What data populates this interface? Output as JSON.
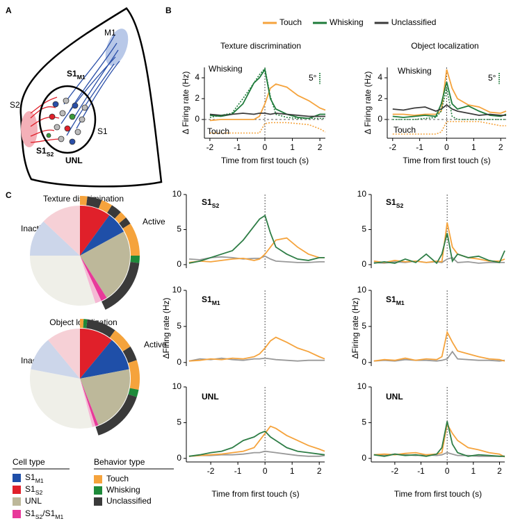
{
  "panel_labels": [
    "A",
    "B",
    "C"
  ],
  "diagram": {
    "labels": [
      {
        "parts": [
          {
            "text": "M1"
          }
        ],
        "color": "#000000"
      },
      {
        "parts": [
          {
            "text": "S1"
          },
          {
            "text": "M1",
            "sub": true
          }
        ],
        "color": "#1f4fa8"
      },
      {
        "parts": [
          {
            "text": "S2"
          }
        ],
        "color": "#000000"
      },
      {
        "parts": [
          {
            "text": "S1"
          }
        ],
        "color": "#000000"
      },
      {
        "parts": [
          {
            "text": "S1"
          },
          {
            "text": "S2",
            "sub": true
          }
        ],
        "color": "#e0202a"
      },
      {
        "parts": [
          {
            "text": "UNL"
          }
        ],
        "color": "#999999"
      }
    ]
  },
  "cell_type_legend": {
    "title": "Cell type",
    "items": [
      {
        "parts": [
          {
            "text": "S1"
          },
          {
            "text": "M1",
            "sub": true
          }
        ],
        "color": "#1f4fa8",
        "light_color": "#ccd6ea"
      },
      {
        "parts": [
          {
            "text": "S1"
          },
          {
            "text": "S2",
            "sub": true
          }
        ],
        "color": "#e0202a",
        "light_color": "#f6d0d6"
      },
      {
        "parts": [
          {
            "text": "UNL"
          }
        ],
        "color": "#bdb89a",
        "light_color": "#efefe8"
      },
      {
        "parts": [
          {
            "text": "S1"
          },
          {
            "text": "S2",
            "sub": true
          },
          {
            "text": "/S1"
          },
          {
            "text": "M1",
            "sub": true
          }
        ],
        "color": "#e8399a",
        "light_color": "#f5b8d4"
      }
    ]
  },
  "behavior_legend": {
    "title": "Behavior type",
    "items": [
      {
        "text": "Touch",
        "color": "#f5a33c"
      },
      {
        "text": "Whisking",
        "color": "#1e8a3a"
      },
      {
        "text": "Unclassified",
        "color": "#3a3a3a"
      }
    ]
  },
  "chart_data": [
    {
      "type": "line",
      "title": "Texture discrimination",
      "xlabel": "Time from first touch (s)",
      "ylabel": "Δ Firing rate (Hz)",
      "x": [
        -2,
        -1.6,
        -1.2,
        -0.8,
        -0.4,
        -0.2,
        0,
        0.2,
        0.4,
        0.8,
        1.2,
        1.6,
        2,
        2.2
      ],
      "xlim": [
        -2.2,
        2.2
      ],
      "xticks": [
        -2,
        -1,
        0,
        1,
        2
      ],
      "ylim": [
        -1.8,
        5
      ],
      "yticks": [
        0,
        2,
        4
      ],
      "zero_lines": "xy",
      "series": [
        {
          "name": "Touch",
          "color": "#f5a33c",
          "values": [
            -0.1,
            0,
            0,
            0,
            0,
            0.3,
            1.5,
            3.0,
            3.4,
            3.1,
            2.3,
            1.8,
            1.1,
            0.9
          ]
        },
        {
          "name": "Whisking",
          "color": "#1e7b3a",
          "values": [
            0.4,
            0.3,
            0.5,
            1.5,
            3.5,
            4.0,
            4.8,
            2.0,
            1.0,
            0.5,
            0.2,
            0.1,
            0.5,
            0.5
          ]
        },
        {
          "name": "Unclassified",
          "color": "#3a3a3a",
          "values": [
            0.5,
            0.4,
            0.5,
            0.6,
            0.5,
            0.6,
            0.6,
            0.5,
            0.6,
            0.5,
            0.4,
            0.3,
            0.3,
            0.3
          ]
        },
        {
          "color": "#1e7b3a",
          "dash": true,
          "values": [
            0.2,
            0.4,
            0.6,
            2.0,
            3.5,
            4.3,
            4.9,
            2.2,
            0.5,
            0.2,
            0.1,
            0.1,
            0.1,
            0.1
          ]
        },
        {
          "color": "#f5a33c",
          "dash": true,
          "values": [
            -1.3,
            -1.3,
            -1.3,
            -1.3,
            -1.3,
            -1.3,
            -0.4,
            -0.3,
            -0.3,
            -0.3,
            -0.4,
            -0.5,
            -0.9,
            -1.2
          ]
        }
      ],
      "annotations": [
        {
          "text": "Whisking",
          "color": "#1e7b3a"
        },
        {
          "text": "Touch",
          "color": "#f5a33c"
        },
        {
          "text": "5°",
          "color": "#1e7b3a"
        }
      ]
    },
    {
      "type": "line",
      "title": "Object localization",
      "xlabel": "Time  from first touch (s)",
      "ylabel": "Δ Firing rate (Hz)",
      "x": [
        -2,
        -1.6,
        -1.2,
        -0.8,
        -0.4,
        -0.2,
        0,
        0.2,
        0.4,
        0.8,
        1.2,
        1.6,
        2,
        2.2
      ],
      "xlim": [
        -2.2,
        2.2
      ],
      "xticks": [
        -2,
        -1,
        0,
        1,
        2
      ],
      "ylim": [
        -1.8,
        5
      ],
      "yticks": [
        0,
        2,
        4
      ],
      "zero_lines": "xy",
      "series": [
        {
          "color": "#f5a33c",
          "values": [
            0.5,
            0.5,
            0.4,
            0.5,
            0.5,
            0.8,
            4.8,
            3.0,
            2.0,
            1.4,
            1.2,
            0.7,
            0.6,
            0.8
          ]
        },
        {
          "color": "#1e7b3a",
          "values": [
            0.3,
            0.2,
            0.3,
            0.4,
            0.3,
            1.5,
            3.6,
            1.5,
            1.0,
            1.3,
            0.8,
            0.4,
            0.3,
            0.5
          ]
        },
        {
          "color": "#3a3a3a",
          "values": [
            1.0,
            0.9,
            1.1,
            1.2,
            0.8,
            1.0,
            1.4,
            1.0,
            0.8,
            0.6,
            0.4,
            0.5,
            0.4,
            0.4
          ]
        },
        {
          "color": "#1e7b3a",
          "dash": true,
          "values": [
            0,
            0,
            0,
            0.1,
            0.2,
            0.8,
            3.0,
            0.3,
            0,
            0,
            0,
            0,
            0,
            0
          ]
        },
        {
          "color": "#f5a33c",
          "dash": true,
          "values": [
            -1.4,
            -1.4,
            -1.4,
            -1.4,
            -1.4,
            -1.2,
            -0.2,
            -0.2,
            -0.2,
            -0.2,
            -0.2,
            -0.4,
            -0.6,
            -0.6
          ]
        }
      ],
      "annotations": [
        {
          "text": "Whisking",
          "color": "#1e7b3a"
        },
        {
          "text": "Touch",
          "color": "#f5a33c"
        },
        {
          "text": "5°",
          "color": "#1e7b3a"
        }
      ]
    },
    {
      "type": "pie",
      "title": "Texture discrimination",
      "inactive_label": "Inactive",
      "active_label": "Active",
      "active": [
        7,
        10,
        24,
        2
      ],
      "inactive": [
        12,
        13,
        30,
        2
      ],
      "ring": [
        {
          "color": "#f5a33c",
          "value": 2
        },
        {
          "color": "#3a3a3a",
          "value": 4
        },
        {
          "color": "#f5a33c",
          "value": 3
        },
        {
          "color": "#3a3a3a",
          "value": 3
        },
        {
          "color": "#f5a33c",
          "value": 2
        },
        {
          "color": "#3a3a3a",
          "value": 2
        },
        {
          "color": "#f5a33c",
          "value": 9
        },
        {
          "color": "#1e8a3a",
          "value": 2
        },
        {
          "color": "#3a3a3a",
          "value": 16
        }
      ]
    },
    {
      "type": "pie",
      "title": "Object localization",
      "inactive_label": "Inactive",
      "active_label": "Active",
      "active": [
        11,
        11,
        22,
        1
      ],
      "inactive": [
        11,
        11,
        32,
        1
      ],
      "ring": [
        {
          "color": "#f5a33c",
          "value": 1
        },
        {
          "color": "#1e8a3a",
          "value": 1
        },
        {
          "color": "#3a3a3a",
          "value": 8
        },
        {
          "color": "#f5a33c",
          "value": 6
        },
        {
          "color": "#3a3a3a",
          "value": 4
        },
        {
          "color": "#f5a33c",
          "value": 8
        },
        {
          "color": "#1e8a3a",
          "value": 2
        },
        {
          "color": "#3a3a3a",
          "value": 15
        }
      ]
    },
    {
      "type": "line",
      "label": [
        {
          "text": "S1"
        },
        {
          "text": "S2",
          "sub": true
        }
      ],
      "label_color": "#e0202a",
      "x": [
        -2.8,
        -2.4,
        -2,
        -1.6,
        -1.2,
        -0.8,
        -0.4,
        -0.2,
        0,
        0.2,
        0.4,
        0.8,
        1.2,
        1.6,
        2,
        2.2
      ],
      "xlim": [
        -2.9,
        2.2
      ],
      "ylim": [
        -0.5,
        10
      ],
      "yticks": [
        0,
        5,
        10
      ],
      "zero_lines": "x",
      "series": [
        {
          "color": "#999999",
          "values": [
            0.8,
            0.7,
            1.0,
            1.1,
            1.0,
            0.8,
            0.9,
            0.9,
            1.2,
            0.8,
            0.5,
            0.4,
            0.3,
            0.3,
            0.4,
            0.4
          ]
        },
        {
          "color": "#f5a33c",
          "values": [
            0.3,
            0.5,
            0.4,
            0.6,
            0.8,
            0.9,
            0.6,
            0.8,
            1.5,
            2.5,
            3.5,
            3.8,
            2.5,
            1.5,
            1.0,
            1.0
          ]
        },
        {
          "color": "#2e7d46",
          "values": [
            0.2,
            0.5,
            1.0,
            1.5,
            2.0,
            3.5,
            5.5,
            6.5,
            7.0,
            4.5,
            2.5,
            1.5,
            0.8,
            0.6,
            1.0,
            1.0
          ]
        }
      ]
    },
    {
      "type": "line",
      "label": [
        {
          "text": "S1"
        },
        {
          "text": "S2",
          "sub": true
        }
      ],
      "label_color": "#e0202a",
      "x": [
        -2.8,
        -2.4,
        -2,
        -1.6,
        -1.2,
        -0.8,
        -0.4,
        -0.2,
        0,
        0.2,
        0.4,
        0.8,
        1.2,
        1.6,
        2,
        2.2
      ],
      "xlim": [
        -2.9,
        2.2
      ],
      "ylim": [
        -0.5,
        10
      ],
      "yticks": [
        0,
        5,
        10
      ],
      "zero_lines": "x",
      "series": [
        {
          "color": "#999999",
          "values": [
            0.3,
            0.2,
            0.4,
            0.3,
            0.5,
            0.3,
            0.4,
            0.3,
            0.8,
            1.0,
            0.3,
            0.4,
            0.2,
            0.3,
            0.3,
            0.3
          ]
        },
        {
          "color": "#f5a33c",
          "values": [
            0.5,
            0.3,
            0.6,
            0.4,
            0.5,
            0.3,
            0.5,
            0.4,
            6.0,
            2.5,
            1.5,
            1.0,
            0.8,
            0.5,
            0.5,
            0.8
          ]
        },
        {
          "color": "#2e7d46",
          "values": [
            0.2,
            0.4,
            0.2,
            0.8,
            0.3,
            1.5,
            0.2,
            1.5,
            4.5,
            0.5,
            1.5,
            1.0,
            1.2,
            0.6,
            0.3,
            2.0
          ]
        }
      ]
    },
    {
      "type": "line",
      "label": [
        {
          "text": "S1"
        },
        {
          "text": "M1",
          "sub": true
        }
      ],
      "label_color": "#1f4fa8",
      "ylabel": "ΔFiring rate (Hz)",
      "x": [
        -2.8,
        -2.4,
        -2,
        -1.6,
        -1.2,
        -0.8,
        -0.4,
        -0.2,
        0,
        0.2,
        0.4,
        0.8,
        1.2,
        1.6,
        2,
        2.2
      ],
      "xlim": [
        -2.9,
        2.2
      ],
      "ylim": [
        -0.5,
        10
      ],
      "yticks": [
        0,
        5,
        10
      ],
      "zero_lines": "x",
      "series": [
        {
          "color": "#999999",
          "values": [
            0.2,
            0.5,
            0.4,
            0.6,
            0.4,
            0.3,
            0.5,
            0.5,
            0.6,
            0.5,
            0.4,
            0.3,
            0.2,
            0.3,
            0.3,
            0.3
          ]
        },
        {
          "color": "#f5a33c",
          "values": [
            0.2,
            0.3,
            0.5,
            0.4,
            0.6,
            0.5,
            0.8,
            1.2,
            2.0,
            3.0,
            3.5,
            2.8,
            2.0,
            1.5,
            0.8,
            0.5
          ]
        }
      ]
    },
    {
      "type": "line",
      "label": [
        {
          "text": "S1"
        },
        {
          "text": "M1",
          "sub": true
        }
      ],
      "label_color": "#1f4fa8",
      "ylabel": "ΔFiring rate (Hz)",
      "x": [
        -2.8,
        -2.4,
        -2,
        -1.6,
        -1.2,
        -0.8,
        -0.4,
        -0.2,
        0,
        0.2,
        0.4,
        0.8,
        1.2,
        1.6,
        2,
        2.2
      ],
      "xlim": [
        -2.9,
        2.2
      ],
      "ylim": [
        -0.5,
        10
      ],
      "yticks": [
        0,
        5,
        10
      ],
      "zero_lines": "x",
      "series": [
        {
          "color": "#999999",
          "values": [
            0.2,
            0.3,
            0.2,
            0.4,
            0.3,
            0.3,
            0.2,
            0.3,
            0.5,
            1.5,
            0.5,
            0.4,
            0.3,
            0.3,
            0.2,
            0.3
          ]
        },
        {
          "color": "#f5a33c",
          "values": [
            0.2,
            0.4,
            0.3,
            0.6,
            0.3,
            0.5,
            0.4,
            0.8,
            4.2,
            2.8,
            1.6,
            1.2,
            0.8,
            0.5,
            0.4,
            0.2
          ]
        }
      ]
    },
    {
      "type": "line",
      "label": [
        {
          "text": "UNL"
        }
      ],
      "label_color": "#000000",
      "xlabel": "Time from first touch (s)",
      "x": [
        -2.8,
        -2.4,
        -2,
        -1.6,
        -1.2,
        -0.8,
        -0.4,
        -0.2,
        0,
        0.2,
        0.4,
        0.8,
        1.2,
        1.6,
        2,
        2.2
      ],
      "xlim": [
        -2.9,
        2.2
      ],
      "xticks": [
        -2,
        -1,
        0,
        1,
        2
      ],
      "ylim": [
        -0.5,
        10
      ],
      "yticks": [
        0,
        5,
        10
      ],
      "zero_lines": "x",
      "series": [
        {
          "color": "#999999",
          "values": [
            0.3,
            0.4,
            0.4,
            0.5,
            0.5,
            0.6,
            0.8,
            0.8,
            1.0,
            0.9,
            0.8,
            0.6,
            0.4,
            0.3,
            0.3,
            0.4
          ]
        },
        {
          "color": "#f5a33c",
          "values": [
            0.3,
            0.4,
            0.5,
            0.6,
            0.8,
            1.0,
            1.5,
            2.5,
            3.5,
            4.5,
            4.2,
            3.2,
            2.5,
            1.8,
            1.3,
            1.0
          ]
        },
        {
          "color": "#2e7d46",
          "values": [
            0.3,
            0.5,
            0.8,
            1.0,
            1.5,
            2.5,
            3.0,
            3.5,
            3.8,
            3.0,
            2.5,
            1.5,
            1.0,
            0.8,
            0.6,
            0.5
          ]
        }
      ]
    },
    {
      "type": "line",
      "label": [
        {
          "text": "UNL"
        }
      ],
      "label_color": "#000000",
      "xlabel": "Time from first touch (s)",
      "x": [
        -2.8,
        -2.4,
        -2,
        -1.6,
        -1.2,
        -0.8,
        -0.4,
        -0.2,
        0,
        0.2,
        0.4,
        0.8,
        1.2,
        1.6,
        2,
        2.2
      ],
      "xlim": [
        -2.9,
        2.2
      ],
      "xticks": [
        -2,
        -1,
        0,
        1,
        2
      ],
      "ylim": [
        -0.5,
        10
      ],
      "yticks": [
        0,
        5,
        10
      ],
      "zero_lines": "x",
      "series": [
        {
          "color": "#999999",
          "values": [
            0.5,
            0.4,
            0.6,
            0.5,
            0.4,
            0.5,
            0.4,
            0.5,
            0.8,
            0.6,
            0.4,
            0.4,
            0.3,
            0.3,
            0.3,
            0.3
          ]
        },
        {
          "color": "#f5a33c",
          "values": [
            0.5,
            0.6,
            0.5,
            0.7,
            0.8,
            0.5,
            0.6,
            0.8,
            4.8,
            3.5,
            2.5,
            1.5,
            1.2,
            0.8,
            0.6,
            0.2
          ]
        },
        {
          "color": "#2e7d46",
          "values": [
            0.5,
            0.3,
            0.6,
            0.4,
            0.5,
            0.3,
            0.6,
            1.5,
            5.2,
            2.0,
            0.8,
            0.3,
            0.5,
            0.4,
            0.3,
            0.3
          ]
        }
      ]
    }
  ]
}
